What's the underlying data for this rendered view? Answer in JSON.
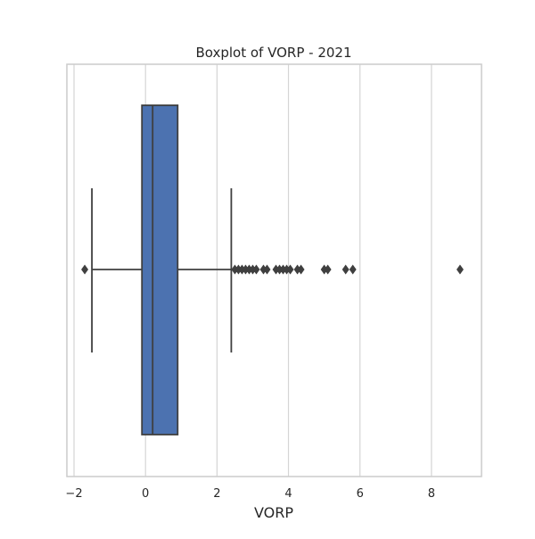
{
  "chart_data": {
    "type": "boxplot",
    "title": "Boxplot of VORP - 2021",
    "xlabel": "VORP",
    "ylabel": "",
    "xlim": [
      -2.2,
      9.4
    ],
    "xticks": [
      -2,
      0,
      2,
      4,
      6,
      8
    ],
    "xtick_labels": [
      "−2",
      "0",
      "2",
      "4",
      "6",
      "8"
    ],
    "grid": "vertical",
    "box": {
      "q1": -0.1,
      "median": 0.2,
      "q3": 0.9,
      "whisker_low": -1.5,
      "whisker_high": 2.4
    },
    "outliers": [
      -1.7,
      2.5,
      2.6,
      2.7,
      2.8,
      2.9,
      3.0,
      3.1,
      3.3,
      3.4,
      3.65,
      3.75,
      3.85,
      3.95,
      4.05,
      4.25,
      4.35,
      5.0,
      5.1,
      5.6,
      5.8,
      8.8
    ],
    "colors": {
      "box_fill": "#4c72b0",
      "line": "#3f3f3f",
      "grid": "#d5d5d5",
      "frame": "#cccccc"
    }
  }
}
